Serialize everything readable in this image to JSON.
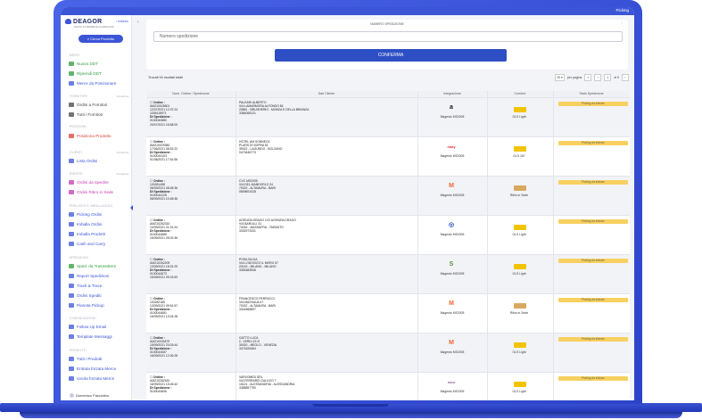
{
  "topbar": {
    "tag": "Picking"
  },
  "sidebar": {
    "logo": "DEAGOR",
    "logo_sub": "DIGITAL ECOMMERCE AGGREGATOR",
    "collapse": "Indietro",
    "search_button": "Cerca Prodotto",
    "sections": [
      {
        "title": "MERCI"
      },
      {
        "title": "FORNITORI",
        "tag": "Visualizza"
      },
      {
        "title": "POSIZIONI"
      },
      {
        "title": "CLIENTI",
        "tag": "Visualizza"
      },
      {
        "title": "RIENTRI",
        "tag": "Visualizza"
      },
      {
        "title": "PRELIEVO E IMBALLAGGIO"
      },
      {
        "title": "SPEDIZIONI"
      },
      {
        "title": "COMUNICAZIONI"
      },
      {
        "title": "PRODOTTI",
        "tag": ""
      }
    ],
    "items": [
      {
        "label": "Nuovo DDT",
        "color": "#2f9c3c"
      },
      {
        "label": "Riprendi DDT",
        "color": "#2f9c3c"
      },
      {
        "label": "Merce da Posizionare",
        "color": "#3b55d6"
      },
      {
        "label": "Ordini a Fornitori",
        "color": "#444"
      },
      {
        "label": "Tutti i Fornitori",
        "color": "#444"
      },
      {
        "label": "Posiziona Prodotto",
        "color": "#d9413a"
      },
      {
        "label": "Lista Ordini",
        "color": "#3b55d6"
      },
      {
        "label": "Ordini da Spedire",
        "color": "#c33bb0"
      },
      {
        "label": "Ordini Ritiro in Sede",
        "color": "#c33bb0"
      },
      {
        "label": "Picking Ordini",
        "color": "#3b55d6"
      },
      {
        "label": "Imballa Ordini",
        "color": "#3b55d6"
      },
      {
        "label": "Imballa Prodotti",
        "color": "#3b55d6"
      },
      {
        "label": "Cash and Carry",
        "color": "#3b55d6"
      },
      {
        "label": "Sped. da Trasmettere",
        "color": "#2f9c3c"
      },
      {
        "label": "Report Spedizioni",
        "color": "#3b55d6"
      },
      {
        "label": "Track & Trace",
        "color": "#3b55d6"
      },
      {
        "label": "Ordini Spediti",
        "color": "#3b55d6"
      },
      {
        "label": "Pianota Pickup",
        "color": "#3b55d6"
      },
      {
        "label": "Follow Up Email",
        "color": "#3b55d6"
      },
      {
        "label": "Template Messaggi",
        "color": "#3b55d6"
      },
      {
        "label": "Tutti i Prodotti",
        "color": "#3b55d6"
      },
      {
        "label": "Entrata forzata Merce",
        "color": "#3b55d6"
      },
      {
        "label": "Uscita forzata Merce",
        "color": "#3b55d6"
      }
    ],
    "user": "Domenico Fasciolino"
  },
  "panel": {
    "label": "NUMERO SPEDIZIONE",
    "placeholder": "Numero spedizione",
    "confirm": "CONFERMA"
  },
  "results": "Trovati 94 risultati totali",
  "pager": {
    "per_page": "25",
    "per_page_label": "per pagina",
    "page": "1",
    "of": "di 5",
    "prev": "‹",
    "first": "«",
    "next": "›"
  },
  "table": {
    "headers": [
      "Num. Ordine / Spedizione",
      "Dati Cliente",
      "Integrazione",
      "Corriere",
      "Stato Spedizione"
    ],
    "rows": [
      {
        "order_label": "Ordine :",
        "order_no": "AMZ10025601",
        "order_date": "12/07/2021 12:37:24",
        "order_id": "1155418971",
        "ship_label": "Dt Spedizione :",
        "ship_no": "0100040880",
        "ship_date": "20/07/2021 16:58:00",
        "c1": "PALEARI ALBERTO",
        "c2": "VIA LAMARMORA ALFONSO 84",
        "c3": "20861 - BRUGHERIO - MONZA E DELLA BRIANZA",
        "c4": "3384068121",
        "integ": "Magento MS2005",
        "integ_icon": "a",
        "integ_color": "#111",
        "courier": "GLS Light",
        "status": "Picking da iniziare"
      },
      {
        "order_label": "Ordine :",
        "order_no": "AMZ10029380",
        "order_date": "17/06/2021 08:52:22",
        "order_id": "",
        "ship_label": "Dt Spedizione :",
        "ship_no": "0100044103",
        "ship_date": "01/08/2021 17:51:56",
        "c1": "HOTEL AM SONNECK",
        "c2": "PLARS DI SOPRA 51",
        "c3": "39022 - LAGUNDO - BOLZANO",
        "c4": "0473446773",
        "integ": "Magento MS2005",
        "integ_icon": "ebay",
        "integ_color": "#e53238",
        "courier": "GLS 167",
        "status": "Picking da iniziare"
      },
      {
        "order_label": "Ordine :",
        "order_no": "100281498",
        "order_date": "08/09/2021 08:28:36",
        "order_id": "",
        "ship_label": "Dt Spedizione :",
        "ship_no": "0100044125",
        "ship_date": "08/09/2021 10:48:36",
        "c1": "CVC MS2005",
        "c2": "VIA DEL MANDORLO 24",
        "c3": "70022 - ALTAMURA - BARI",
        "c4": "0809691028",
        "integ": "Magento MS2005",
        "integ_icon": "M",
        "integ_color": "#ee672f",
        "courier": "Ritiro in Sede",
        "status": "Picking da iniziare"
      },
      {
        "order_label": "Ordine :",
        "order_no": "AMZ10262310",
        "order_date": "10/09/2021 21:31:34",
        "order_id": "",
        "ship_label": "Dt Spedizione :",
        "ship_no": "0100044685",
        "ship_date": "15/09/2021 09:02:36",
        "c1": "AGENZIA DRAGO C/O AGENZIA DRAGO",
        "c2": "VIA BARULLI 31",
        "c3": "74016 - MASSAFRA - TARANTO",
        "c4": "3332973331",
        "integ": "Magento MS2005",
        "integ_icon": "◎",
        "integ_color": "#2d4fc3",
        "courier": "GLS Light",
        "status": "Picking da iniziare"
      },
      {
        "order_label": "Ordine :",
        "order_no": "AMZ10262209",
        "order_date": "13/09/2021 18:31:29",
        "order_id": "",
        "ship_label": "Dt Spedizione :",
        "ship_no": "0100044573",
        "ship_date": "15/09/2021 09:23:53",
        "c1": "POSA SILVIA",
        "c2": "VIA LODOVICO IL MORO 57",
        "c3": "20143 - MILANO - MILANO",
        "c4": "3351683946",
        "integ": "Magento MS2005",
        "integ_icon": "S",
        "integ_color": "#5e8e3e",
        "courier": "GLS Light",
        "status": "Picking da iniziare"
      },
      {
        "order_label": "Ordine :",
        "order_no": "100282185",
        "order_date": "13/09/2021 09:51:57",
        "order_id": "",
        "ship_label": "Dt Spedizione :",
        "ship_no": "0100044681",
        "ship_date": "16/09/2021 13:04:28",
        "c1": "FRANCESCO PERRUCCI",
        "c2": "VIA MASSAUA 47",
        "c3": "70022 - ALTAMURA - BARI",
        "c4": "3341868897",
        "integ": "Magento MS2005",
        "integ_icon": "M",
        "integ_color": "#ee672f",
        "courier": "Ritiro in Sede",
        "status": "Picking da iniziare"
      },
      {
        "order_label": "Ordine :",
        "order_no": "AMZ10030479",
        "order_date": "15/09/2021 23:03:44",
        "order_id": "",
        "ship_label": "Dt Spedizione :",
        "ship_no": "0100044087",
        "ship_date": "16/09/2021 12:26:28",
        "c1": "GATTO LUCA",
        "c2": "C. VERDI 19 /2",
        "c3": "30020 - MEOLO - VENEZIA",
        "c4": "3471626464",
        "integ": "Magento MS2005",
        "integ_icon": "M",
        "integ_color": "#ee672f",
        "courier": "GLS Light",
        "status": "Picking da iniziare"
      },
      {
        "order_label": "Ordine :",
        "order_no": "AMZ10262182",
        "order_date": "16/09/2021 15:26:42",
        "order_id": "",
        "ship_label": "Dt Spedizione :",
        "ship_no": "0100044696",
        "ship_date": "",
        "c1": "VARVOMED SRL",
        "c2": "VIA FERRARIS GALILEO 7",
        "c3": "15121 - ALESSANDRIA - ALESSANDRIA",
        "c4": "3385857750",
        "integ": "Magento MS2005",
        "integ_icon": "woo",
        "integ_color": "#96588a",
        "courier": "GLS Light",
        "status": "Picking da iniziare"
      }
    ]
  }
}
